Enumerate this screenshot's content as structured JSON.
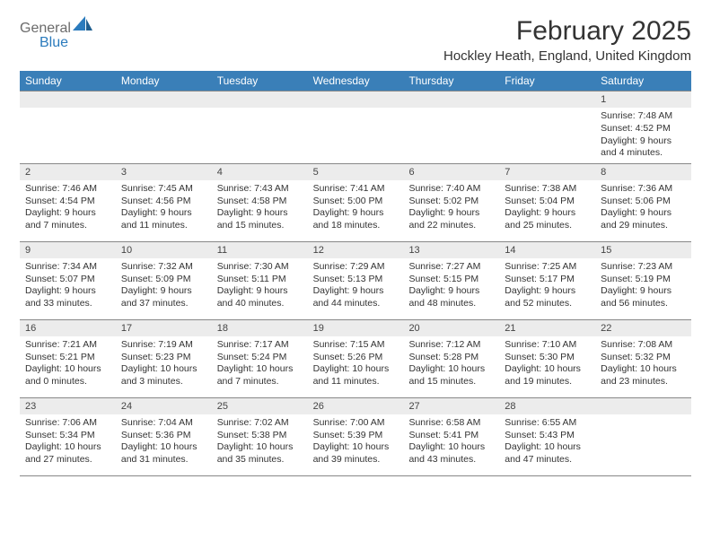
{
  "logo": {
    "part1": "General",
    "part2": "Blue"
  },
  "title": "February 2025",
  "location": "Hockley Heath, England, United Kingdom",
  "dayHeaders": [
    "Sunday",
    "Monday",
    "Tuesday",
    "Wednesday",
    "Thursday",
    "Friday",
    "Saturday"
  ],
  "colors": {
    "headerBg": "#3a7fb8",
    "headerText": "#ffffff",
    "dayNumBg": "#ececec",
    "border": "#888888",
    "text": "#333333",
    "logoGray": "#6b6b6b",
    "logoBlue": "#2b7bbd"
  },
  "weeks": [
    [
      null,
      null,
      null,
      null,
      null,
      null,
      {
        "n": "1",
        "sunrise": "Sunrise: 7:48 AM",
        "sunset": "Sunset: 4:52 PM",
        "daylight": "Daylight: 9 hours and 4 minutes."
      }
    ],
    [
      {
        "n": "2",
        "sunrise": "Sunrise: 7:46 AM",
        "sunset": "Sunset: 4:54 PM",
        "daylight": "Daylight: 9 hours and 7 minutes."
      },
      {
        "n": "3",
        "sunrise": "Sunrise: 7:45 AM",
        "sunset": "Sunset: 4:56 PM",
        "daylight": "Daylight: 9 hours and 11 minutes."
      },
      {
        "n": "4",
        "sunrise": "Sunrise: 7:43 AM",
        "sunset": "Sunset: 4:58 PM",
        "daylight": "Daylight: 9 hours and 15 minutes."
      },
      {
        "n": "5",
        "sunrise": "Sunrise: 7:41 AM",
        "sunset": "Sunset: 5:00 PM",
        "daylight": "Daylight: 9 hours and 18 minutes."
      },
      {
        "n": "6",
        "sunrise": "Sunrise: 7:40 AM",
        "sunset": "Sunset: 5:02 PM",
        "daylight": "Daylight: 9 hours and 22 minutes."
      },
      {
        "n": "7",
        "sunrise": "Sunrise: 7:38 AM",
        "sunset": "Sunset: 5:04 PM",
        "daylight": "Daylight: 9 hours and 25 minutes."
      },
      {
        "n": "8",
        "sunrise": "Sunrise: 7:36 AM",
        "sunset": "Sunset: 5:06 PM",
        "daylight": "Daylight: 9 hours and 29 minutes."
      }
    ],
    [
      {
        "n": "9",
        "sunrise": "Sunrise: 7:34 AM",
        "sunset": "Sunset: 5:07 PM",
        "daylight": "Daylight: 9 hours and 33 minutes."
      },
      {
        "n": "10",
        "sunrise": "Sunrise: 7:32 AM",
        "sunset": "Sunset: 5:09 PM",
        "daylight": "Daylight: 9 hours and 37 minutes."
      },
      {
        "n": "11",
        "sunrise": "Sunrise: 7:30 AM",
        "sunset": "Sunset: 5:11 PM",
        "daylight": "Daylight: 9 hours and 40 minutes."
      },
      {
        "n": "12",
        "sunrise": "Sunrise: 7:29 AM",
        "sunset": "Sunset: 5:13 PM",
        "daylight": "Daylight: 9 hours and 44 minutes."
      },
      {
        "n": "13",
        "sunrise": "Sunrise: 7:27 AM",
        "sunset": "Sunset: 5:15 PM",
        "daylight": "Daylight: 9 hours and 48 minutes."
      },
      {
        "n": "14",
        "sunrise": "Sunrise: 7:25 AM",
        "sunset": "Sunset: 5:17 PM",
        "daylight": "Daylight: 9 hours and 52 minutes."
      },
      {
        "n": "15",
        "sunrise": "Sunrise: 7:23 AM",
        "sunset": "Sunset: 5:19 PM",
        "daylight": "Daylight: 9 hours and 56 minutes."
      }
    ],
    [
      {
        "n": "16",
        "sunrise": "Sunrise: 7:21 AM",
        "sunset": "Sunset: 5:21 PM",
        "daylight": "Daylight: 10 hours and 0 minutes."
      },
      {
        "n": "17",
        "sunrise": "Sunrise: 7:19 AM",
        "sunset": "Sunset: 5:23 PM",
        "daylight": "Daylight: 10 hours and 3 minutes."
      },
      {
        "n": "18",
        "sunrise": "Sunrise: 7:17 AM",
        "sunset": "Sunset: 5:24 PM",
        "daylight": "Daylight: 10 hours and 7 minutes."
      },
      {
        "n": "19",
        "sunrise": "Sunrise: 7:15 AM",
        "sunset": "Sunset: 5:26 PM",
        "daylight": "Daylight: 10 hours and 11 minutes."
      },
      {
        "n": "20",
        "sunrise": "Sunrise: 7:12 AM",
        "sunset": "Sunset: 5:28 PM",
        "daylight": "Daylight: 10 hours and 15 minutes."
      },
      {
        "n": "21",
        "sunrise": "Sunrise: 7:10 AM",
        "sunset": "Sunset: 5:30 PM",
        "daylight": "Daylight: 10 hours and 19 minutes."
      },
      {
        "n": "22",
        "sunrise": "Sunrise: 7:08 AM",
        "sunset": "Sunset: 5:32 PM",
        "daylight": "Daylight: 10 hours and 23 minutes."
      }
    ],
    [
      {
        "n": "23",
        "sunrise": "Sunrise: 7:06 AM",
        "sunset": "Sunset: 5:34 PM",
        "daylight": "Daylight: 10 hours and 27 minutes."
      },
      {
        "n": "24",
        "sunrise": "Sunrise: 7:04 AM",
        "sunset": "Sunset: 5:36 PM",
        "daylight": "Daylight: 10 hours and 31 minutes."
      },
      {
        "n": "25",
        "sunrise": "Sunrise: 7:02 AM",
        "sunset": "Sunset: 5:38 PM",
        "daylight": "Daylight: 10 hours and 35 minutes."
      },
      {
        "n": "26",
        "sunrise": "Sunrise: 7:00 AM",
        "sunset": "Sunset: 5:39 PM",
        "daylight": "Daylight: 10 hours and 39 minutes."
      },
      {
        "n": "27",
        "sunrise": "Sunrise: 6:58 AM",
        "sunset": "Sunset: 5:41 PM",
        "daylight": "Daylight: 10 hours and 43 minutes."
      },
      {
        "n": "28",
        "sunrise": "Sunrise: 6:55 AM",
        "sunset": "Sunset: 5:43 PM",
        "daylight": "Daylight: 10 hours and 47 minutes."
      },
      null
    ]
  ]
}
